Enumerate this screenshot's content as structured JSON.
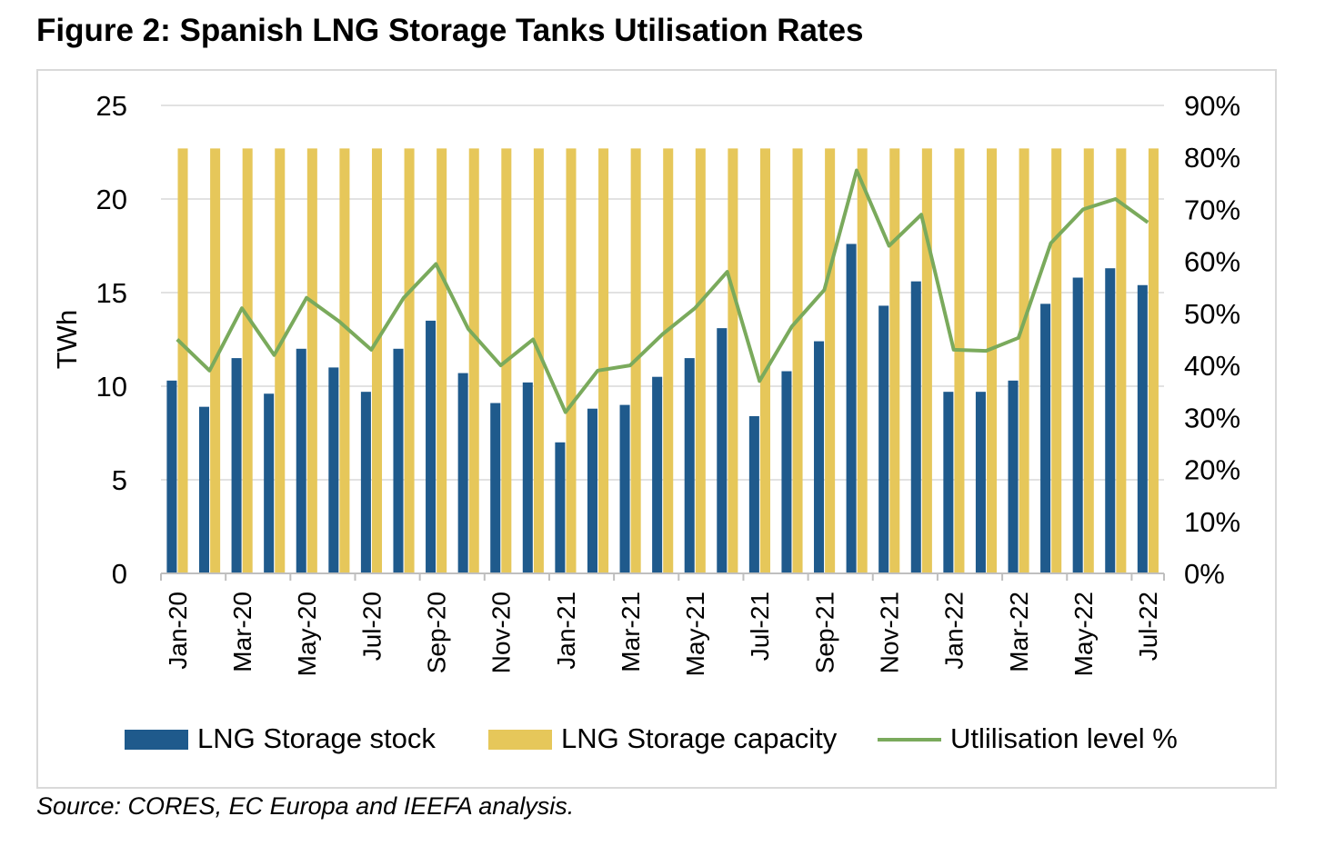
{
  "title": "Figure 2: Spanish LNG Storage Tanks Utilisation Rates",
  "source": "Source: CORES, EC Europa and IEEFA analysis.",
  "colors": {
    "stock": "#1f5a8c",
    "capacity": "#e6c75a",
    "utilisation": "#7aaa5c",
    "axis": "#bfbfbf",
    "grid": "#d9d9d9",
    "frame": "#d9d9d9"
  },
  "chart_data": {
    "type": "bar",
    "title": "Figure 2: Spanish LNG Storage Tanks Utilisation Rates",
    "ylabel": "TWh",
    "y2label": "",
    "ylim": [
      0,
      25
    ],
    "y2lim": [
      0,
      0.9
    ],
    "yticks": [
      "0",
      "5",
      "10",
      "15",
      "20",
      "25"
    ],
    "y2ticks": [
      "0%",
      "10%",
      "20%",
      "30%",
      "40%",
      "50%",
      "60%",
      "70%",
      "80%",
      "90%"
    ],
    "grid": true,
    "legend_position": "bottom",
    "categories": [
      "Jan-20",
      "Feb-20",
      "Mar-20",
      "Apr-20",
      "May-20",
      "Jun-20",
      "Jul-20",
      "Aug-20",
      "Sep-20",
      "Oct-20",
      "Nov-20",
      "Dec-20",
      "Jan-21",
      "Feb-21",
      "Mar-21",
      "Apr-21",
      "May-21",
      "Jun-21",
      "Jul-21",
      "Aug-21",
      "Sep-21",
      "Oct-21",
      "Nov-21",
      "Dec-21",
      "Jan-22",
      "Feb-22",
      "Mar-22",
      "Apr-22",
      "May-22",
      "Jun-22",
      "Jul-22"
    ],
    "tick_labels": [
      "Jan-20",
      "",
      "Mar-20",
      "",
      "May-20",
      "",
      "Jul-20",
      "",
      "Sep-20",
      "",
      "Nov-20",
      "",
      "Jan-21",
      "",
      "Mar-21",
      "",
      "May-21",
      "",
      "Jul-21",
      "",
      "Sep-21",
      "",
      "Nov-21",
      "",
      "Jan-22",
      "",
      "Mar-22",
      "",
      "May-22",
      "",
      "Jul-22"
    ],
    "series": [
      {
        "name": "LNG Storage stock",
        "type": "bar",
        "axis": "left",
        "values": [
          10.3,
          8.9,
          11.5,
          9.6,
          12.0,
          11.0,
          9.7,
          12.0,
          13.5,
          10.7,
          9.1,
          10.2,
          7.0,
          8.8,
          9.0,
          10.5,
          11.5,
          13.1,
          8.4,
          10.8,
          12.4,
          17.6,
          14.3,
          15.6,
          9.7,
          9.7,
          10.3,
          14.4,
          15.8,
          16.3,
          15.4
        ]
      },
      {
        "name": "LNG Storage capacity",
        "type": "bar",
        "axis": "left",
        "values": [
          22.7,
          22.7,
          22.7,
          22.7,
          22.7,
          22.7,
          22.7,
          22.7,
          22.7,
          22.7,
          22.7,
          22.7,
          22.7,
          22.7,
          22.7,
          22.7,
          22.7,
          22.7,
          22.7,
          22.7,
          22.7,
          22.7,
          22.7,
          22.7,
          22.7,
          22.7,
          22.7,
          22.7,
          22.7,
          22.7,
          22.7
        ]
      },
      {
        "name": "Utlilisation level %",
        "type": "line",
        "axis": "right",
        "values": [
          0.45,
          0.39,
          0.51,
          0.42,
          0.53,
          0.485,
          0.43,
          0.53,
          0.595,
          0.47,
          0.4,
          0.45,
          0.31,
          0.39,
          0.4,
          0.46,
          0.51,
          0.58,
          0.37,
          0.475,
          0.545,
          0.775,
          0.63,
          0.69,
          0.43,
          0.428,
          0.453,
          0.635,
          0.7,
          0.72,
          0.675
        ]
      }
    ]
  }
}
